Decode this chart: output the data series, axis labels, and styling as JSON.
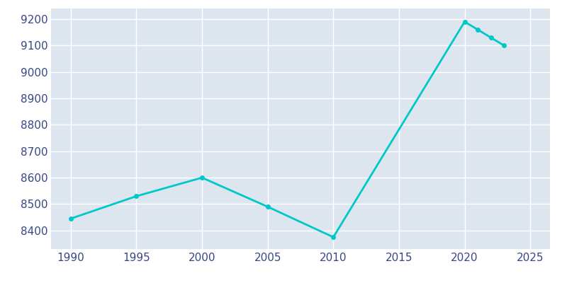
{
  "years": [
    1990,
    1995,
    2000,
    2005,
    2010,
    2020,
    2021,
    2022,
    2023
  ],
  "population": [
    8445,
    8530,
    8600,
    8490,
    8375,
    9190,
    9160,
    9130,
    9100
  ],
  "line_color": "#00C8C8",
  "marker_color": "#00C8C8",
  "fig_bg_color": "#FFFFFF",
  "plot_bg_color": "#DDE6EF",
  "grid_color": "#FFFFFF",
  "tick_label_color": "#374785",
  "ylim": [
    8330,
    9240
  ],
  "xlim": [
    1988.5,
    2026.5
  ],
  "yticks": [
    8400,
    8500,
    8600,
    8700,
    8800,
    8900,
    9000,
    9100,
    9200
  ],
  "xticks": [
    1990,
    1995,
    2000,
    2005,
    2010,
    2015,
    2020,
    2025
  ],
  "linewidth": 2.0,
  "markersize": 4,
  "tick_fontsize": 11
}
